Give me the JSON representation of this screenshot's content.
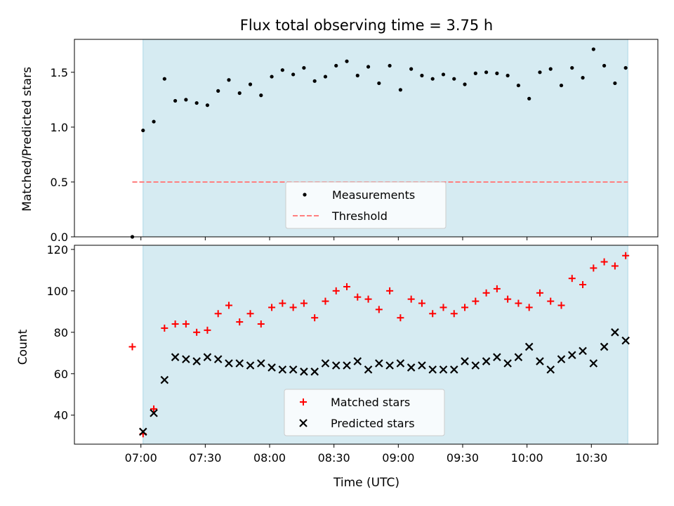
{
  "chart_data": [
    {
      "type": "scatter",
      "title": "Flux total observing time = 3.75 h",
      "ylabel": "Matched/Predicted stars",
      "xlabel": "",
      "ylim": [
        0,
        1.8
      ],
      "yticks": [
        "0.0",
        "0.5",
        "1.0",
        "1.5"
      ],
      "xticks": [
        "07:00",
        "07:30",
        "08:00",
        "08:30",
        "09:00",
        "09:30",
        "10:00",
        "10:30"
      ],
      "shaded_range": [
        "07:01",
        "10:47"
      ],
      "shade_color": "#add8e6",
      "threshold": 0.5,
      "legend": {
        "placement": "lower-center",
        "entries": [
          "Measurements",
          "Threshold"
        ]
      },
      "series": [
        {
          "name": "Measurements",
          "color": "#000000",
          "marker": "dot",
          "x": [
            "06:56",
            "07:01",
            "07:06",
            "07:11",
            "07:16",
            "07:21",
            "07:26",
            "07:31",
            "07:36",
            "07:41",
            "07:46",
            "07:51",
            "07:56",
            "08:01",
            "08:06",
            "08:11",
            "08:16",
            "08:21",
            "08:26",
            "08:31",
            "08:36",
            "08:41",
            "08:46",
            "08:51",
            "08:56",
            "09:01",
            "09:06",
            "09:11",
            "09:16",
            "09:21",
            "09:26",
            "09:31",
            "09:36",
            "09:41",
            "09:46",
            "09:51",
            "09:56",
            "10:01",
            "10:06",
            "10:11",
            "10:16",
            "10:21",
            "10:26",
            "10:31",
            "10:36",
            "10:41",
            "10:46"
          ],
          "y": [
            0.0,
            0.97,
            1.05,
            1.44,
            1.24,
            1.25,
            1.22,
            1.2,
            1.33,
            1.43,
            1.31,
            1.39,
            1.29,
            1.46,
            1.52,
            1.48,
            1.54,
            1.42,
            1.46,
            1.56,
            1.6,
            1.47,
            1.55,
            1.4,
            1.56,
            1.34,
            1.53,
            1.47,
            1.44,
            1.48,
            1.44,
            1.39,
            1.49,
            1.5,
            1.49,
            1.47,
            1.38,
            1.26,
            1.5,
            1.53,
            1.38,
            1.54,
            1.45,
            1.71,
            1.56,
            1.4,
            1.54
          ]
        },
        {
          "name": "Threshold",
          "color": "#ff7f7f",
          "style": "dashed",
          "x": [
            "06:56",
            "10:47"
          ],
          "y": [
            0.5,
            0.5
          ]
        }
      ]
    },
    {
      "type": "scatter",
      "title": "",
      "ylabel": "Count",
      "xlabel": "Time (UTC)",
      "ylim": [
        26,
        122
      ],
      "yticks": [
        "40",
        "60",
        "80",
        "100",
        "120"
      ],
      "xticks": [
        "07:00",
        "07:30",
        "08:00",
        "08:30",
        "09:00",
        "09:30",
        "10:00",
        "10:30"
      ],
      "shaded_range": [
        "07:01",
        "10:47"
      ],
      "shade_color": "#add8e6",
      "legend": {
        "placement": "lower-center",
        "entries": [
          "Matched stars",
          "Predicted stars"
        ]
      },
      "series": [
        {
          "name": "Matched stars",
          "color": "#ff0000",
          "marker": "plus",
          "x": [
            "06:56",
            "07:01",
            "07:06",
            "07:11",
            "07:16",
            "07:21",
            "07:26",
            "07:31",
            "07:36",
            "07:41",
            "07:46",
            "07:51",
            "07:56",
            "08:01",
            "08:06",
            "08:11",
            "08:16",
            "08:21",
            "08:26",
            "08:31",
            "08:36",
            "08:41",
            "08:46",
            "08:51",
            "08:56",
            "09:01",
            "09:06",
            "09:11",
            "09:16",
            "09:21",
            "09:26",
            "09:31",
            "09:36",
            "09:41",
            "09:46",
            "09:51",
            "09:56",
            "10:01",
            "10:06",
            "10:11",
            "10:16",
            "10:21",
            "10:26",
            "10:31",
            "10:36",
            "10:41",
            "10:46"
          ],
          "y": [
            73,
            31,
            43,
            82,
            84,
            84,
            80,
            81,
            89,
            93,
            85,
            89,
            84,
            92,
            94,
            92,
            94,
            87,
            95,
            100,
            102,
            97,
            96,
            91,
            100,
            87,
            96,
            94,
            89,
            92,
            89,
            92,
            95,
            99,
            101,
            96,
            94,
            92,
            99,
            95,
            93,
            106,
            103,
            111,
            114,
            112,
            117
          ]
        },
        {
          "name": "Predicted stars",
          "color": "#000000",
          "marker": "x",
          "x": [
            "07:01",
            "07:06",
            "07:11",
            "07:16",
            "07:21",
            "07:26",
            "07:31",
            "07:36",
            "07:41",
            "07:46",
            "07:51",
            "07:56",
            "08:01",
            "08:06",
            "08:11",
            "08:16",
            "08:21",
            "08:26",
            "08:31",
            "08:36",
            "08:41",
            "08:46",
            "08:51",
            "08:56",
            "09:01",
            "09:06",
            "09:11",
            "09:16",
            "09:21",
            "09:26",
            "09:31",
            "09:36",
            "09:41",
            "09:46",
            "09:51",
            "09:56",
            "10:01",
            "10:06",
            "10:11",
            "10:16",
            "10:21",
            "10:26",
            "10:31",
            "10:36",
            "10:41",
            "10:46"
          ],
          "y": [
            32,
            41,
            57,
            68,
            67,
            66,
            68,
            67,
            65,
            65,
            64,
            65,
            63,
            62,
            62,
            61,
            61,
            65,
            64,
            64,
            66,
            62,
            65,
            64,
            65,
            63,
            64,
            62,
            62,
            62,
            66,
            64,
            66,
            68,
            65,
            68,
            73,
            66,
            62,
            67,
            69,
            71,
            65,
            73,
            80,
            76
          ]
        }
      ]
    }
  ]
}
